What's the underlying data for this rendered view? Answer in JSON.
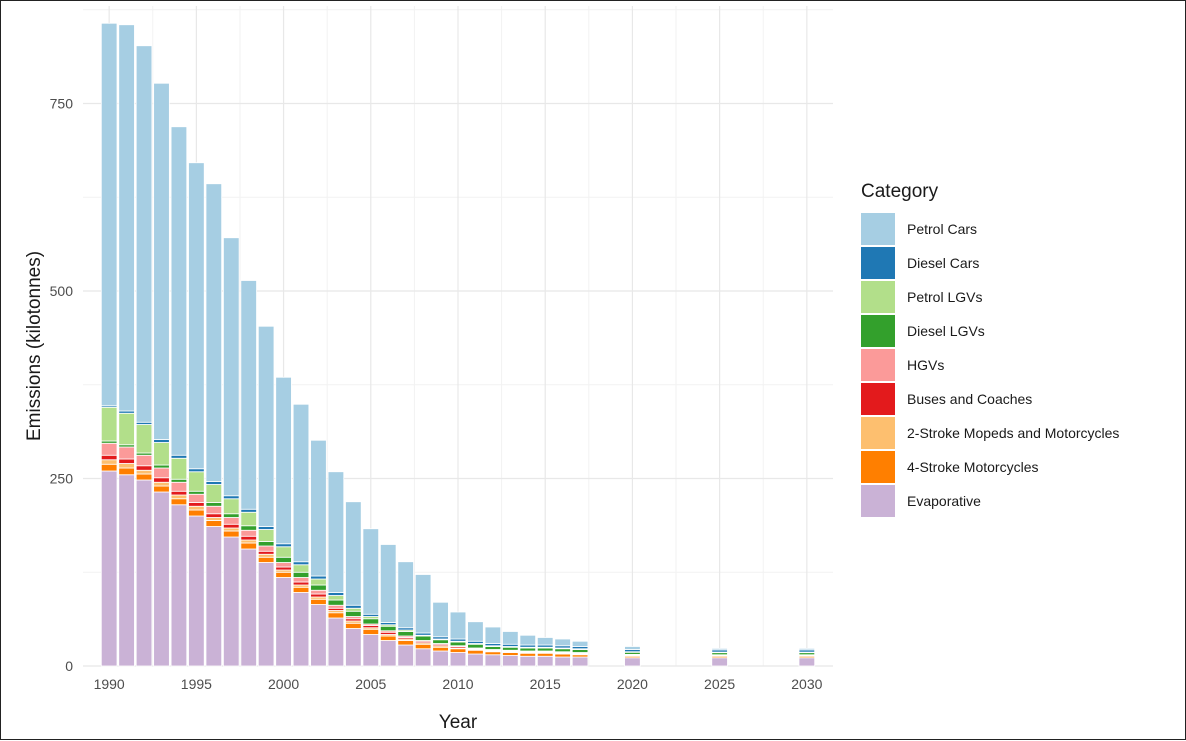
{
  "chart_data": {
    "type": "bar",
    "stacked": true,
    "xlabel": "Year",
    "ylabel": "Emissions (kilotonnes)",
    "legend_title": "Category",
    "legend_position": "right",
    "grid": true,
    "ylim": [
      0,
      880
    ],
    "xlim": [
      1988.5,
      2031.5
    ],
    "x_ticks": [
      1990,
      1995,
      2000,
      2005,
      2010,
      2015,
      2020,
      2025,
      2030
    ],
    "y_ticks": [
      0,
      250,
      500,
      750
    ],
    "x": [
      1990,
      1991,
      1992,
      1993,
      1994,
      1995,
      1996,
      1997,
      1998,
      1999,
      2000,
      2001,
      2002,
      2003,
      2004,
      2005,
      2006,
      2007,
      2008,
      2009,
      2010,
      2011,
      2012,
      2013,
      2014,
      2015,
      2016,
      2017,
      2020,
      2025,
      2030
    ],
    "series": [
      {
        "name": "Evaporative",
        "color": "#cab2d6",
        "values": [
          260,
          255,
          248,
          232,
          215,
          200,
          186,
          172,
          156,
          138,
          118,
          98,
          82,
          64,
          50,
          42,
          34,
          28,
          23,
          20,
          18,
          16,
          15,
          14,
          13,
          13,
          12,
          12,
          11,
          11,
          11
        ]
      },
      {
        "name": "4-Stroke Motorcycles",
        "color": "#ff7f00",
        "values": [
          9,
          9,
          8,
          8,
          8,
          8,
          8,
          8,
          8,
          7,
          7,
          7,
          7,
          7,
          7,
          7,
          6,
          6,
          6,
          5,
          5,
          5,
          4,
          4,
          4,
          4,
          4,
          3,
          2,
          2,
          2
        ]
      },
      {
        "name": "2-Stroke Mopeds and Motorcycles",
        "color": "#fdbf6f",
        "values": [
          6,
          6,
          5,
          5,
          5,
          5,
          4,
          4,
          4,
          4,
          3,
          3,
          3,
          3,
          3,
          2,
          2,
          2,
          2,
          2,
          1,
          1,
          1,
          1,
          1,
          1,
          1,
          1,
          1,
          1,
          1
        ]
      },
      {
        "name": "Buses and Coaches",
        "color": "#e31a1c",
        "values": [
          6,
          6,
          6,
          6,
          5,
          5,
          5,
          5,
          5,
          4,
          4,
          4,
          4,
          3,
          3,
          3,
          3,
          2,
          2,
          2,
          2,
          1,
          1,
          1,
          1,
          1,
          1,
          1,
          1,
          0.5,
          0.5
        ]
      },
      {
        "name": "HGVs",
        "color": "#fb9a99",
        "values": [
          16,
          16,
          14,
          13,
          12,
          11,
          10,
          9,
          8,
          7,
          6,
          6,
          5,
          4,
          3,
          2,
          2,
          2,
          1,
          1,
          1,
          1,
          1,
          1,
          1,
          1,
          1,
          1,
          0.5,
          0.5,
          0.5
        ]
      },
      {
        "name": "Diesel LGVs",
        "color": "#33a02c",
        "values": [
          3,
          3,
          3,
          4,
          4,
          4,
          5,
          5,
          6,
          6,
          7,
          7,
          7,
          7,
          7,
          7,
          6,
          6,
          6,
          5,
          5,
          5,
          4,
          4,
          4,
          4,
          4,
          4,
          3,
          3,
          3
        ]
      },
      {
        "name": "Petrol LGVs",
        "color": "#b2df8a",
        "values": [
          45,
          42,
          38,
          30,
          28,
          26,
          24,
          20,
          18,
          16,
          14,
          10,
          8,
          6,
          4,
          3,
          2,
          2,
          1,
          1,
          1,
          1,
          1,
          1,
          1,
          1,
          1,
          1,
          0.5,
          0.5,
          0.5
        ]
      },
      {
        "name": "Diesel Cars",
        "color": "#1f78b4",
        "values": [
          2,
          3,
          3,
          4,
          4,
          4,
          4,
          4,
          4,
          4,
          4,
          4,
          4,
          4,
          4,
          3,
          3,
          3,
          3,
          3,
          3,
          3,
          3,
          3,
          3,
          3,
          3,
          3,
          3,
          3,
          3
        ]
      },
      {
        "name": "Petrol Cars",
        "color": "#a6cee3",
        "values": [
          510,
          515,
          502,
          475,
          438,
          408,
          397,
          344,
          305,
          267,
          222,
          210,
          181,
          161,
          138,
          114,
          104,
          88,
          78,
          46,
          36,
          26,
          22,
          17,
          13,
          10,
          9,
          7,
          4,
          2,
          2
        ]
      }
    ],
    "legend_order": [
      "Petrol Cars",
      "Diesel Cars",
      "Petrol LGVs",
      "Diesel LGVs",
      "HGVs",
      "Buses and Coaches",
      "2-Stroke Mopeds and Motorcycles",
      "4-Stroke Motorcycles",
      "Evaporative"
    ]
  }
}
